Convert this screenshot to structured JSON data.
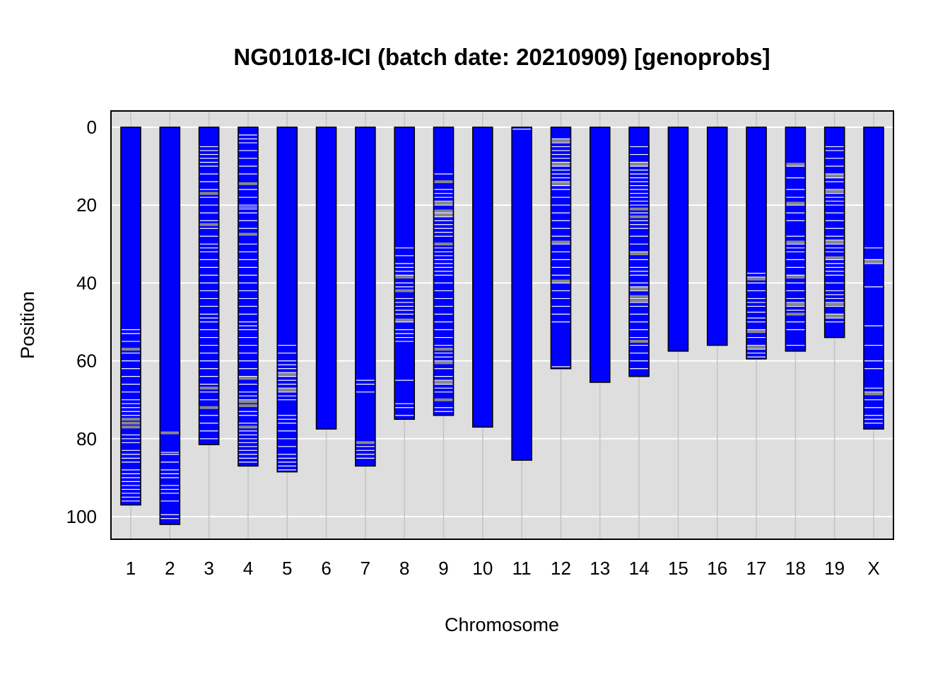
{
  "chart_data": {
    "type": "chromosome_genotype_map",
    "title": "NG01018-ICI (batch date: 20210909) [genoprobs]",
    "xlabel": "Chromosome",
    "ylabel": "Position",
    "ylim": [
      0,
      106
    ],
    "y_reversed": true,
    "y_ticks": [
      0,
      20,
      40,
      60,
      80,
      100
    ],
    "grid": true,
    "legend": "none",
    "colors": {
      "panel_background": "#dedede",
      "gridline": "#ffffff",
      "chromosome_fill": "#0000ff",
      "chromosome_border": "#000000",
      "marker_minor": "#ffffff",
      "marker_major": "#888888"
    },
    "chromosomes": [
      {
        "name": "1",
        "length": 97.0,
        "markers_white": [
          52,
          53,
          55,
          58,
          60,
          62,
          64,
          66,
          68,
          70,
          71,
          72,
          73,
          74,
          79,
          80,
          81,
          83,
          84,
          85,
          86,
          88,
          89,
          90,
          91,
          92,
          93,
          94,
          95,
          96
        ],
        "markers_gray": [
          57,
          75,
          76,
          77
        ]
      },
      {
        "name": "2",
        "length": 102.0,
        "markers_white": [
          83.5,
          84,
          86,
          88,
          89,
          90,
          92,
          93,
          94,
          96,
          99.5,
          100.5
        ],
        "markers_gray": [
          78.5
        ]
      },
      {
        "name": "3",
        "length": 81.5,
        "markers_white": [
          5,
          6,
          7,
          8,
          9,
          10,
          12,
          14,
          16,
          17,
          18,
          20,
          22,
          24,
          25,
          26,
          28,
          30,
          31,
          32,
          34,
          36,
          38,
          40,
          42,
          44,
          46,
          48,
          49,
          50,
          52,
          54,
          56,
          58,
          60,
          62,
          64,
          66,
          68,
          70,
          72,
          74,
          76,
          78,
          80
        ],
        "markers_gray": [
          17,
          25,
          67,
          72
        ]
      },
      {
        "name": "4",
        "length": 87.0,
        "markers_white": [
          2,
          3,
          4,
          6,
          8,
          10,
          12,
          16,
          18,
          20,
          20.5,
          21,
          22,
          24,
          26,
          30,
          32,
          34,
          36,
          38,
          40,
          42,
          44,
          46,
          48,
          50,
          51,
          52,
          54,
          56,
          58,
          60,
          62,
          64,
          66,
          68,
          69,
          70,
          73,
          74,
          76,
          78,
          79,
          80,
          81,
          82,
          83,
          84,
          85,
          86
        ],
        "markers_gray": [
          14.5,
          27.5,
          64.5,
          70.5,
          71.5,
          77
        ]
      },
      {
        "name": "5",
        "length": 88.5,
        "markers_white": [
          56,
          58,
          60,
          61,
          62,
          63,
          64,
          65,
          66,
          67,
          68,
          69,
          70,
          74,
          75,
          76,
          78,
          80,
          82,
          84,
          85,
          86,
          87,
          88
        ],
        "markers_gray": [
          63.5,
          67.5
        ]
      },
      {
        "name": "6",
        "length": 77.5,
        "markers_white": [],
        "markers_gray": []
      },
      {
        "name": "7",
        "length": 87.0,
        "markers_white": [
          65,
          66,
          68,
          82,
          83,
          84,
          85
        ],
        "markers_gray": [
          81
        ]
      },
      {
        "name": "8",
        "length": 75.0,
        "markers_white": [
          31,
          33,
          35,
          36,
          37,
          38,
          40,
          41,
          42,
          44,
          45,
          46,
          47,
          48,
          50,
          52,
          53,
          54,
          55,
          65,
          71,
          72,
          74
        ],
        "markers_gray": [
          38.5,
          42,
          49.5
        ]
      },
      {
        "name": "9",
        "length": 74.0,
        "markers_white": [
          12,
          14,
          16,
          17,
          18,
          19,
          20,
          22,
          23,
          24,
          25,
          26,
          27,
          28,
          30,
          31,
          32,
          33,
          34,
          35,
          36,
          37,
          38,
          40,
          42,
          44,
          46,
          48,
          50,
          52,
          54,
          56,
          58,
          59,
          60,
          62,
          64,
          65,
          66,
          67,
          68,
          70,
          72,
          73
        ],
        "markers_gray": [
          14,
          19.5,
          21.5,
          22.5,
          30,
          57,
          60.5,
          65.5,
          70
        ]
      },
      {
        "name": "10",
        "length": 77.0,
        "markers_white": [],
        "markers_gray": []
      },
      {
        "name": "11",
        "length": 85.5,
        "markers_white": [
          0.5
        ],
        "markers_gray": []
      },
      {
        "name": "12",
        "length": 62.0,
        "markers_white": [
          3,
          4,
          5,
          6,
          7,
          8,
          9,
          10,
          11,
          12,
          13,
          14,
          15,
          16,
          18,
          20,
          22,
          24,
          26,
          28,
          30,
          32,
          34,
          36,
          38,
          40,
          42,
          44,
          46,
          48,
          50,
          61.5,
          62
        ],
        "markers_gray": [
          3.5,
          9.5,
          14.5,
          29.5,
          39.5
        ]
      },
      {
        "name": "13",
        "length": 65.5,
        "markers_white": [],
        "markers_gray": []
      },
      {
        "name": "14",
        "length": 64.0,
        "markers_white": [
          5,
          7,
          9,
          10,
          11,
          12,
          13,
          14,
          15,
          16,
          17,
          18,
          19,
          20,
          21,
          22,
          24,
          25,
          26,
          28,
          30,
          32,
          34,
          36,
          37,
          38,
          40,
          41,
          42,
          44,
          45,
          46,
          48,
          50,
          52,
          54,
          56,
          58,
          60,
          62
        ],
        "markers_gray": [
          9.5,
          21,
          23,
          32.5,
          41.5,
          43.5,
          44.5,
          55
        ]
      },
      {
        "name": "15",
        "length": 57.5,
        "markers_white": [],
        "markers_gray": []
      },
      {
        "name": "16",
        "length": 56.0,
        "markers_white": [],
        "markers_gray": []
      },
      {
        "name": "17",
        "length": 59.5,
        "markers_white": [
          37.5,
          38.5,
          40,
          42,
          44,
          45,
          46,
          47.5,
          49,
          50,
          52,
          54,
          56,
          57,
          58,
          59
        ],
        "markers_gray": [
          39,
          52.5,
          56.5
        ]
      },
      {
        "name": "18",
        "length": 57.5,
        "markers_white": [
          10,
          13,
          16,
          18,
          20,
          22,
          24,
          28,
          30,
          31,
          32,
          34,
          36,
          38,
          40,
          42,
          44,
          45,
          46,
          47,
          48,
          50,
          52,
          56
        ],
        "markers_gray": [
          9.5,
          19.5,
          29.5,
          38.5,
          45.5,
          48
        ]
      },
      {
        "name": "19",
        "length": 54.0,
        "markers_white": [
          5,
          6,
          8,
          10,
          12,
          13,
          14,
          16,
          17,
          18,
          19,
          20,
          22,
          24,
          26,
          28,
          29,
          30,
          31,
          32,
          34,
          35,
          36,
          37,
          38,
          40,
          42,
          43,
          44,
          45,
          46,
          48,
          49,
          50
        ],
        "markers_gray": [
          12.5,
          16.5,
          29.5,
          33.5,
          45.5,
          48.5
        ]
      },
      {
        "name": "X",
        "length": 77.5,
        "markers_white": [
          31,
          34,
          35,
          41,
          51,
          56,
          60,
          62,
          67,
          68,
          70,
          72,
          74,
          75,
          76
        ],
        "markers_gray": [
          34.5,
          68.5
        ]
      }
    ]
  }
}
